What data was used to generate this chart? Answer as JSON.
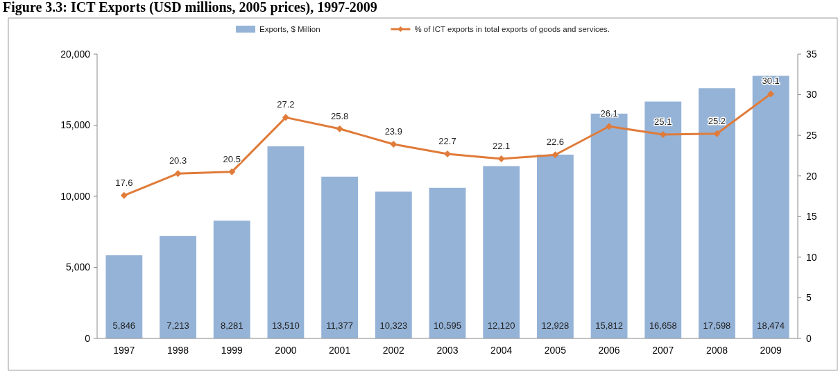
{
  "chart_data": {
    "type": "bar",
    "title": "Figure 3.3: ICT Exports (USD millions, 2005 prices), 1997-2009",
    "categories": [
      "1997",
      "1998",
      "1999",
      "2000",
      "2001",
      "2002",
      "2003",
      "2004",
      "2005",
      "2006",
      "2007",
      "2008",
      "2009"
    ],
    "series": [
      {
        "name": "Exports, $ Million",
        "color": "#95b3d7",
        "values": [
          5846,
          7213,
          8281,
          13510,
          11377,
          10323,
          10595,
          12120,
          12928,
          15812,
          16658,
          17598,
          18474
        ],
        "value_labels": [
          "5,846",
          "7,213",
          "8,281",
          "13,510",
          "11,377",
          "10,323",
          "10,595",
          "12,120",
          "12,928",
          "15,812",
          "16,658",
          "17,598",
          "18,474"
        ]
      },
      {
        "name": "% of ICT exports in total exports of goods and services.",
        "type": "line",
        "axis": "y2",
        "color": "#e07b39",
        "marker": "diamond",
        "values": [
          17.6,
          20.3,
          20.5,
          27.2,
          25.8,
          23.9,
          22.7,
          22.1,
          22.6,
          26.1,
          25.1,
          25.2,
          30.1
        ],
        "data_labels": true
      }
    ],
    "ylim": [
      0,
      20000
    ],
    "yticks": [
      {
        "value": 0,
        "label": "0"
      },
      {
        "value": 5000,
        "label": "5,000"
      },
      {
        "value": 10000,
        "label": "10,000"
      },
      {
        "value": 15000,
        "label": "15,000"
      },
      {
        "value": 20000,
        "label": "20,000"
      }
    ],
    "y2lim": [
      0,
      35
    ],
    "y2ticks": [
      0,
      5,
      10,
      15,
      20,
      25,
      30,
      35
    ],
    "legend": "top",
    "grid": false
  }
}
